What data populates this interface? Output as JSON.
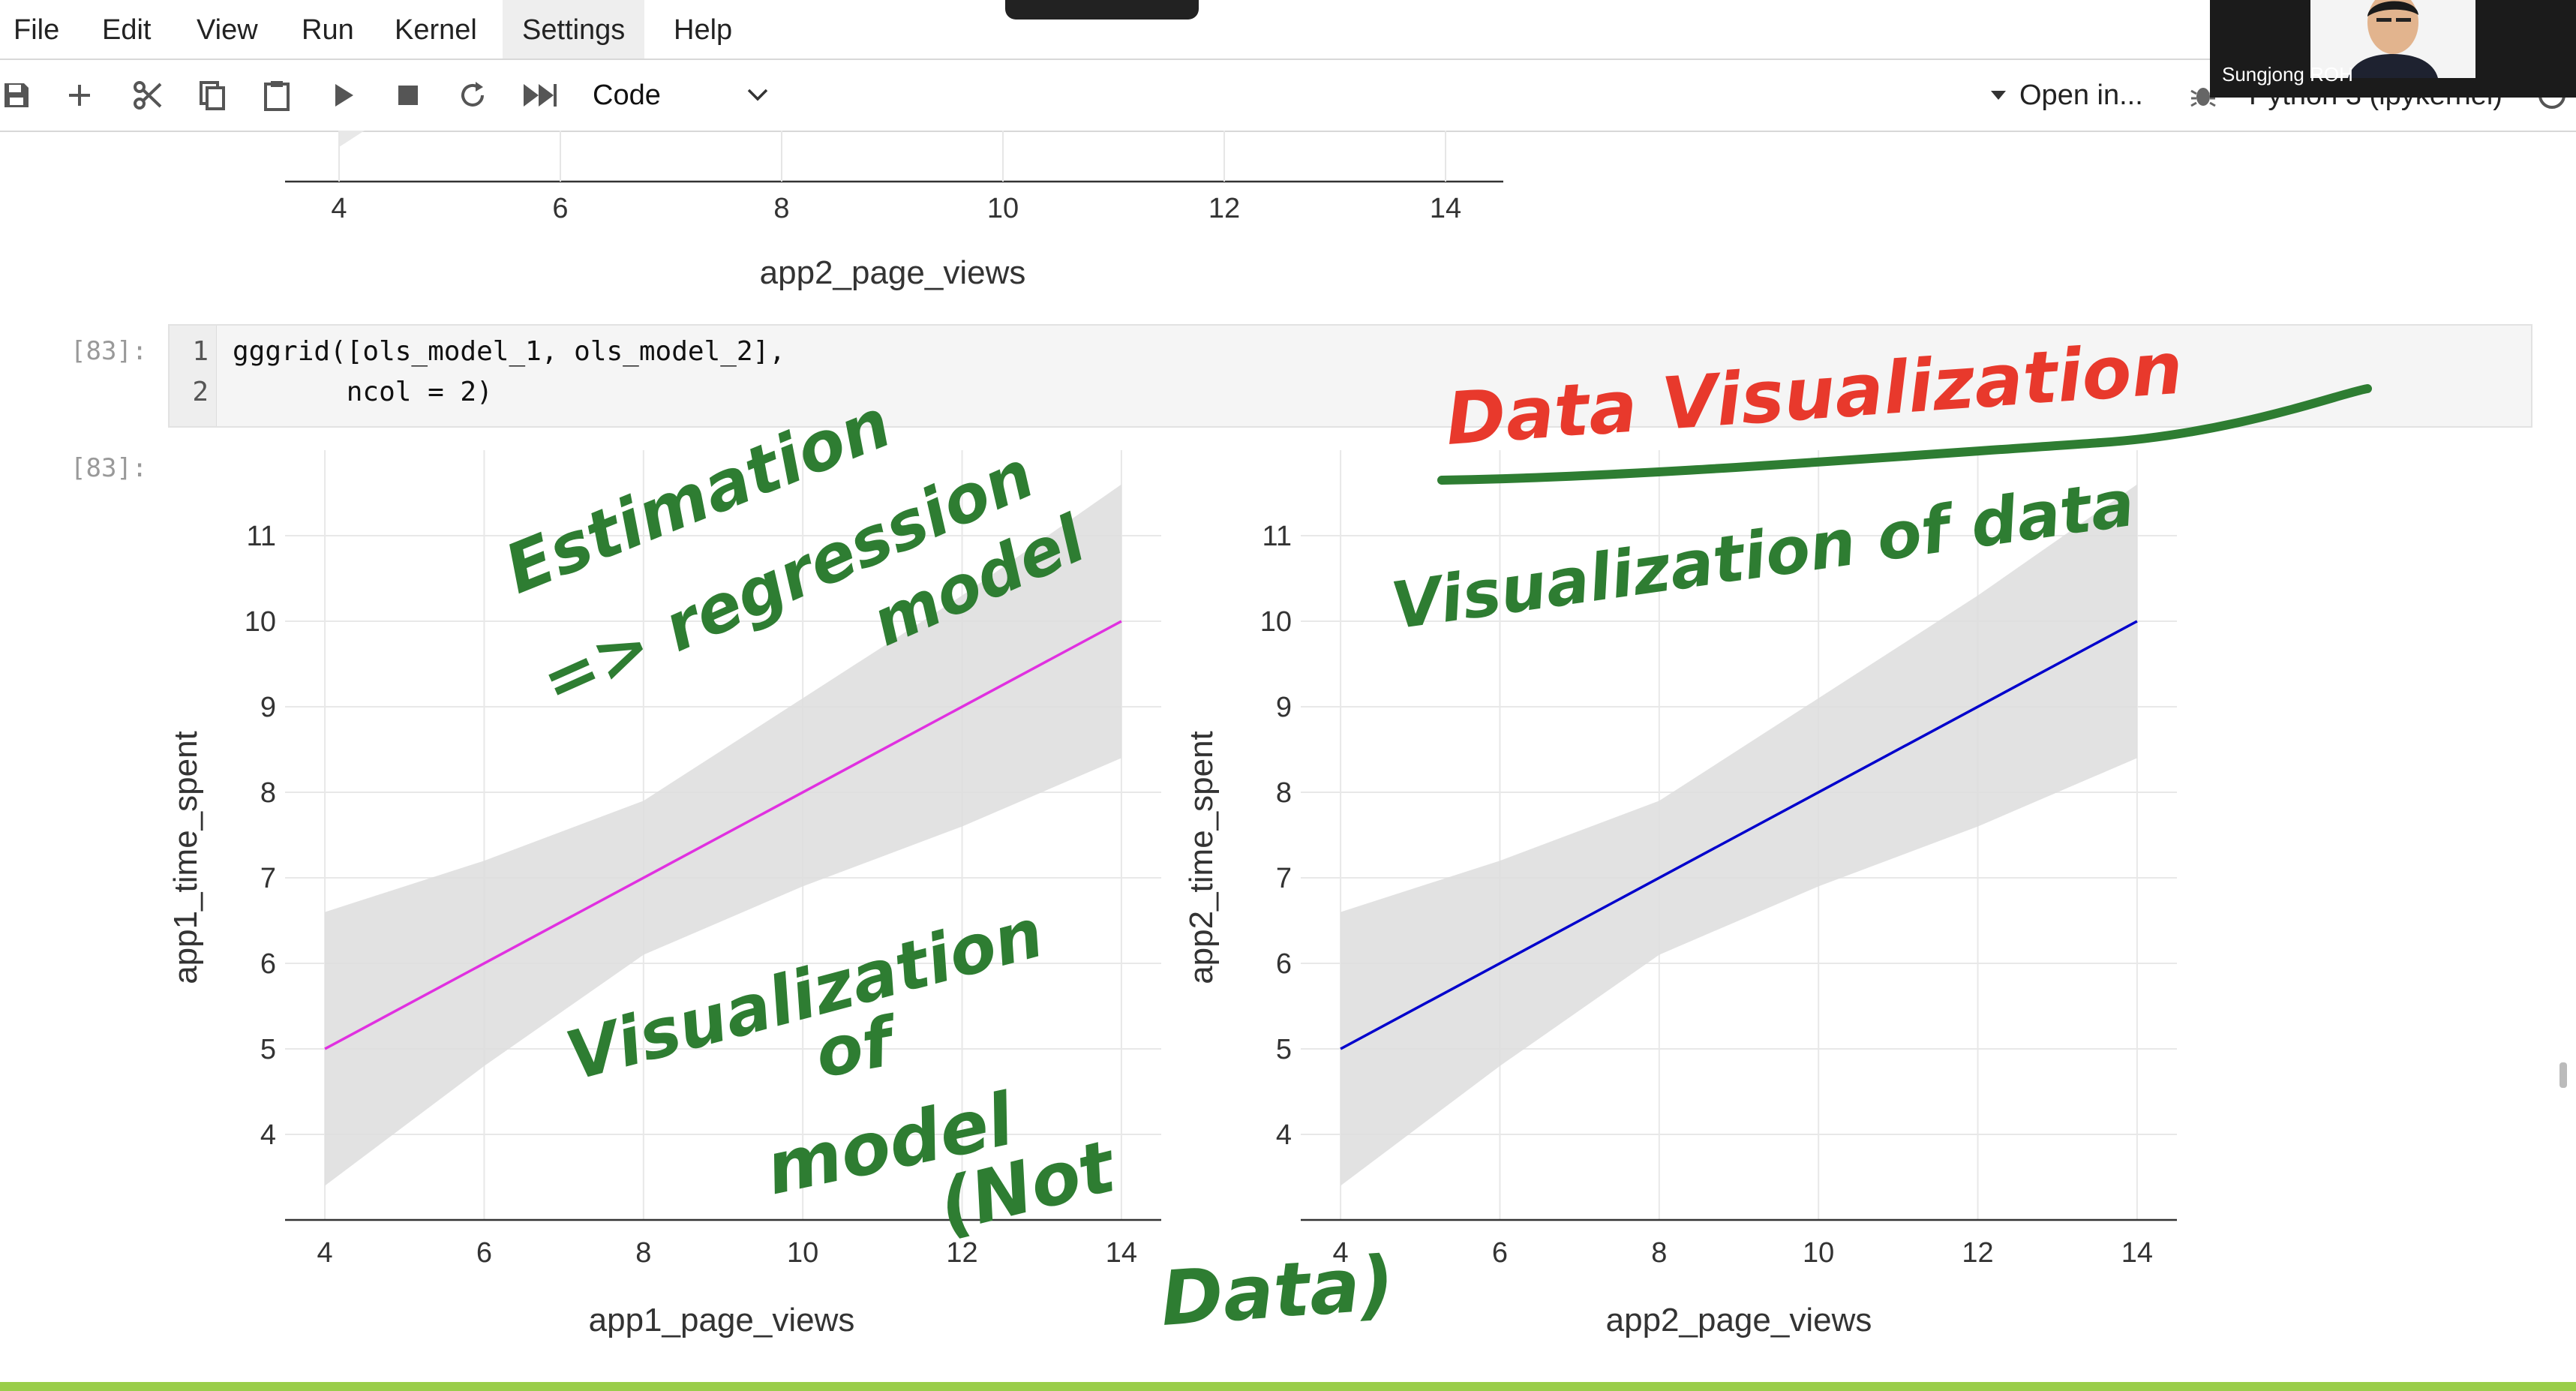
{
  "menu": {
    "file": "File",
    "edit": "Edit",
    "view": "View",
    "run": "Run",
    "kernel": "Kernel",
    "settings": "Settings",
    "help": "Help"
  },
  "toolbar": {
    "cell_type": "Code",
    "open_in": "Open in...",
    "kernel_name": "Python 3 (ipykernel)"
  },
  "video": {
    "participant": "Sungjong ROH"
  },
  "cells": {
    "code_prompt": "[83]:",
    "output_prompt": "[83]:",
    "line1_no": "1",
    "line2_no": "2",
    "line1": "gggrid([ols_model_1, ols_model_2],",
    "line2": "       ncol = 2)"
  },
  "prev_chart": {
    "xticks": [
      "4",
      "6",
      "8",
      "10",
      "12",
      "14"
    ],
    "xlabel": "app2_page_views"
  },
  "chart_data": [
    {
      "type": "line",
      "xlabel": "app1_page_views",
      "ylabel": "app1_time_spent",
      "xlim": [
        3.5,
        14.5
      ],
      "ylim": [
        3,
        12
      ],
      "xticks": [
        "4",
        "6",
        "8",
        "10",
        "12",
        "14"
      ],
      "yticks": [
        "4",
        "5",
        "6",
        "7",
        "8",
        "9",
        "10",
        "11"
      ],
      "grid": true,
      "series": [
        {
          "x": [
            4,
            14
          ],
          "y": [
            5,
            10
          ],
          "color": "#e030e0"
        }
      ],
      "band": {
        "x": [
          4,
          6,
          8,
          10,
          12,
          14
        ],
        "lower": [
          3.4,
          4.8,
          6.1,
          6.9,
          7.6,
          8.4
        ],
        "upper": [
          6.6,
          7.2,
          7.9,
          9.1,
          10.3,
          11.6
        ]
      }
    },
    {
      "type": "line",
      "xlabel": "app2_page_views",
      "ylabel": "app2_time_spent",
      "xlim": [
        3.5,
        14.5
      ],
      "ylim": [
        3,
        12
      ],
      "xticks": [
        "4",
        "6",
        "8",
        "10",
        "12",
        "14"
      ],
      "yticks": [
        "4",
        "5",
        "6",
        "7",
        "8",
        "9",
        "10",
        "11"
      ],
      "grid": true,
      "series": [
        {
          "x": [
            4,
            14
          ],
          "y": [
            5,
            10
          ],
          "color": "#0000cc"
        }
      ],
      "band": {
        "x": [
          4,
          6,
          8,
          10,
          12,
          14
        ],
        "lower": [
          3.4,
          4.8,
          6.1,
          6.9,
          7.6,
          8.4
        ],
        "upper": [
          6.6,
          7.2,
          7.9,
          9.1,
          10.3,
          11.6
        ]
      }
    }
  ],
  "annotations": {
    "estimation": "Estimation",
    "regression": "=> regression",
    "model": "model",
    "vis_model_1": "Visualization",
    "vis_model_2": "of",
    "vis_model_3": "model",
    "vis_model_4": "(Not",
    "vis_model_5": "Data)",
    "data_vis": "Data Visualization",
    "vis_data": "Visualization of data",
    "red_color": "#e8392c",
    "green_color": "#2e7d32"
  }
}
